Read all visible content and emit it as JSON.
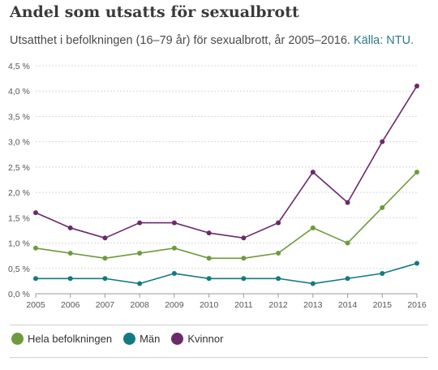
{
  "header": {
    "title": "Andel som utsatts för sexualbrott",
    "subtitle": "Utsatthet i befolkningen (16–79 år) för sexualbrott, år 2005–2016.",
    "source": "Källa: NTU."
  },
  "colors": {
    "hela": "#6e9a3c",
    "man": "#137a82",
    "kvinnor": "#6b2a6a",
    "grid": "#d8d8d8",
    "axis": "#999999"
  },
  "chart_data": {
    "type": "line",
    "x": [
      "2005",
      "2006",
      "2007",
      "2008",
      "2009",
      "2010",
      "2011",
      "2012",
      "2013",
      "2014",
      "2015",
      "2016"
    ],
    "ylim": [
      0,
      4.5
    ],
    "yticks": [
      0,
      0.5,
      1.0,
      1.5,
      2.0,
      2.5,
      3.0,
      3.5,
      4.0,
      4.5
    ],
    "ytick_labels": [
      "0,0 %",
      "0,5 %",
      "1,0 %",
      "1,5 %",
      "2,0 %",
      "2,5 %",
      "3,0 %",
      "3,5 %",
      "4,0 %",
      "4,5 %"
    ],
    "grid": true,
    "legend_position": "bottom",
    "series": [
      {
        "name": "Hela befolkningen",
        "key": "hela",
        "values": [
          0.9,
          0.8,
          0.7,
          0.8,
          0.9,
          0.7,
          0.7,
          0.8,
          1.3,
          1.0,
          1.7,
          2.4
        ]
      },
      {
        "name": "Män",
        "key": "man",
        "values": [
          0.3,
          0.3,
          0.3,
          0.2,
          0.4,
          0.3,
          0.3,
          0.3,
          0.2,
          0.3,
          0.4,
          0.6
        ]
      },
      {
        "name": "Kvinnor",
        "key": "kvinnor",
        "values": [
          1.6,
          1.3,
          1.1,
          1.4,
          1.4,
          1.2,
          1.1,
          1.4,
          2.4,
          1.8,
          3.0,
          4.1
        ]
      }
    ]
  }
}
